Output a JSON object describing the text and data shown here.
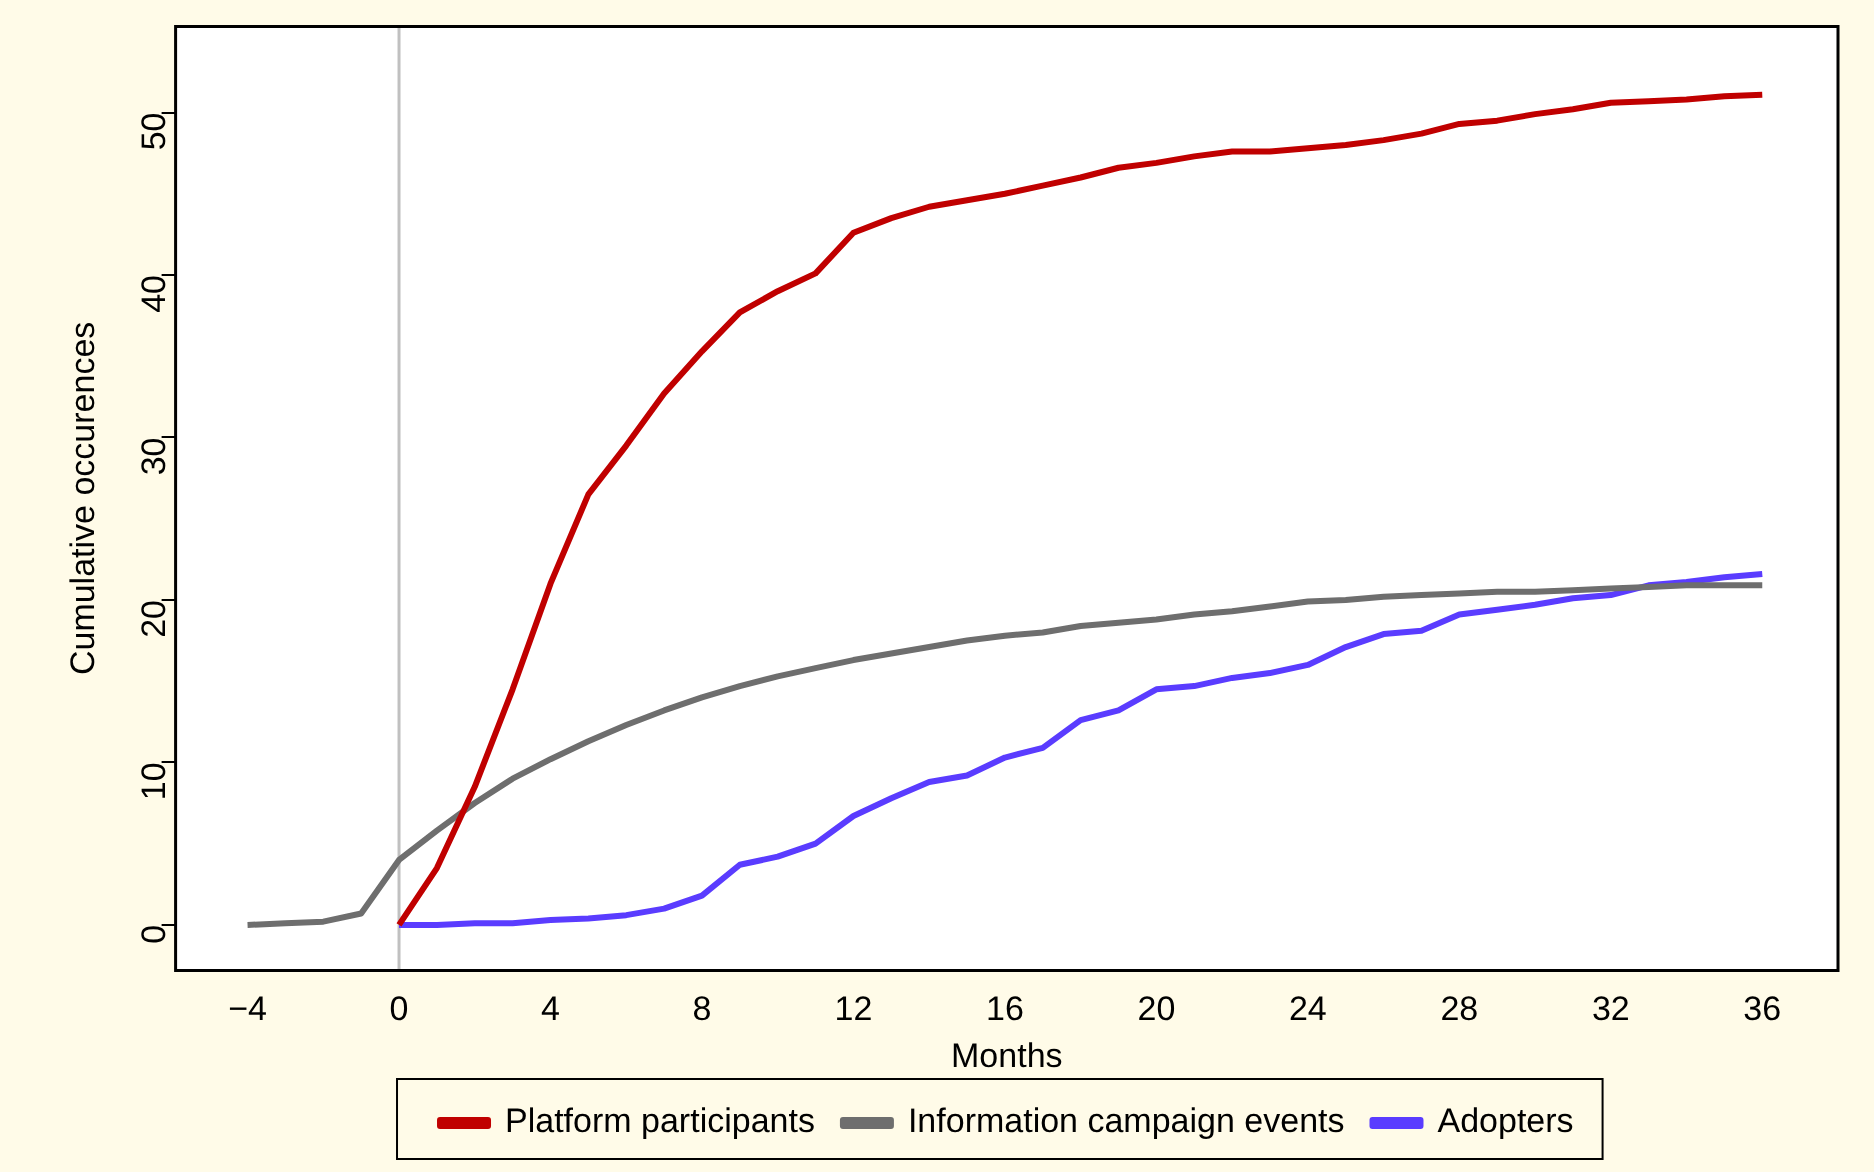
{
  "chart_data": {
    "type": "line",
    "xlabel": "Months",
    "ylabel": "Cumulative occurences",
    "xlim": [
      -5.9,
      38
    ],
    "xticks": [
      -4,
      0,
      4,
      8,
      12,
      16,
      20,
      24,
      28,
      32,
      36
    ],
    "ylim": [
      -2.8,
      55.3
    ],
    "yticks": [
      0,
      10,
      20,
      30,
      40,
      50
    ],
    "grid": false,
    "legend": "bottom",
    "marker": "none",
    "line_style": "solid",
    "ref_lines": [
      {
        "axis": "x",
        "value": 0,
        "color": "#c0c0c0"
      }
    ],
    "series": [
      {
        "name": "Platform participants",
        "color": "#c00000",
        "x": [
          0,
          1,
          2,
          3,
          4,
          5,
          6,
          7,
          8,
          9,
          10,
          11,
          12,
          13,
          14,
          15,
          16,
          17,
          18,
          19,
          20,
          21,
          22,
          23,
          24,
          25,
          26,
          27,
          28,
          29,
          30,
          31,
          32,
          33,
          34,
          35,
          36
        ],
        "values": [
          0,
          3.5,
          8.5,
          14.5,
          21,
          26.5,
          29.5,
          32.7,
          35.3,
          37.7,
          39,
          40.1,
          42.6,
          43.5,
          44.2,
          44.6,
          45,
          45.5,
          46,
          46.6,
          46.9,
          47.3,
          47.6,
          47.6,
          47.8,
          48,
          48.3,
          48.7,
          49.3,
          49.5,
          49.9,
          50.2,
          50.6,
          50.7,
          50.8,
          51,
          51.1
        ]
      },
      {
        "name": "Information campaign events",
        "color": "#6e6e6e",
        "x": [
          -4,
          -3,
          -2,
          -1,
          0,
          1,
          2,
          3,
          4,
          5,
          6,
          7,
          8,
          9,
          10,
          11,
          12,
          13,
          14,
          15,
          16,
          17,
          18,
          19,
          20,
          21,
          22,
          23,
          24,
          25,
          26,
          27,
          28,
          29,
          30,
          31,
          32,
          33,
          34,
          35,
          36
        ],
        "values": [
          0,
          0.1,
          0.2,
          0.7,
          4,
          5.8,
          7.5,
          9,
          10.2,
          11.3,
          12.3,
          13.2,
          14,
          14.7,
          15.3,
          15.8,
          16.3,
          16.7,
          17.1,
          17.5,
          17.8,
          18,
          18.4,
          18.6,
          18.8,
          19.1,
          19.3,
          19.6,
          19.9,
          20,
          20.2,
          20.3,
          20.4,
          20.5,
          20.5,
          20.6,
          20.7,
          20.8,
          20.9,
          20.9,
          20.9
        ]
      },
      {
        "name": "Adopters",
        "color": "#5a3cff",
        "x": [
          0,
          1,
          2,
          3,
          4,
          5,
          6,
          7,
          8,
          9,
          10,
          11,
          12,
          13,
          14,
          15,
          16,
          17,
          18,
          19,
          20,
          21,
          22,
          23,
          24,
          25,
          26,
          27,
          28,
          29,
          30,
          31,
          32,
          33,
          34,
          35,
          36
        ],
        "values": [
          0,
          0,
          0.1,
          0.1,
          0.3,
          0.4,
          0.6,
          1,
          1.8,
          3.7,
          4.2,
          5,
          6.7,
          7.8,
          8.8,
          9.2,
          10.3,
          10.9,
          12.6,
          13.2,
          14.5,
          14.7,
          15.2,
          15.5,
          16,
          17.1,
          17.9,
          18.1,
          19.1,
          19.4,
          19.7,
          20.1,
          20.3,
          20.9,
          21.1,
          21.4,
          21.6
        ]
      }
    ]
  }
}
